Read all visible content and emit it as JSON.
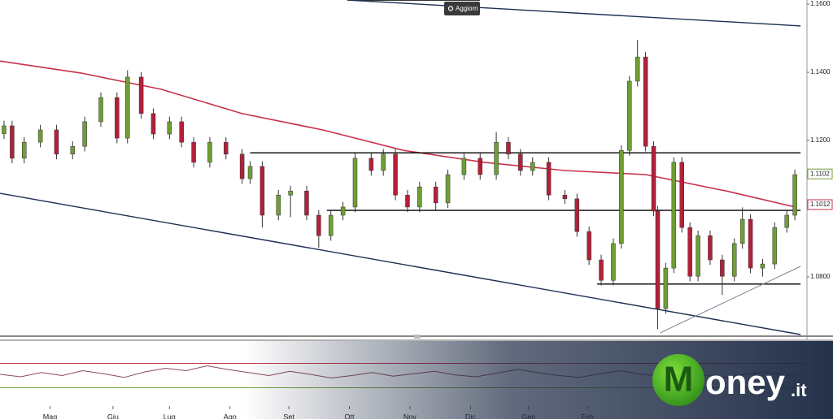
{
  "chart_data": {
    "type": "candlestick",
    "up_color": "#6f9e35",
    "down_color": "#b3203a",
    "xlim": [
      0,
      100
    ],
    "ylim": [
      1.0631,
      1.1612
    ],
    "yticks": [
      {
        "value": 1.08,
        "label": "1.0800"
      },
      {
        "value": 1.12,
        "label": "1.1200"
      },
      {
        "value": 1.14,
        "label": "1.1400"
      },
      {
        "value": 1.16,
        "label": "1.1600"
      }
    ],
    "xticks": [
      {
        "value": 6.2,
        "label": "Mag"
      },
      {
        "value": 14,
        "label": "Giu"
      },
      {
        "value": 21,
        "label": "Lug"
      },
      {
        "value": 28.5,
        "label": "Ago"
      },
      {
        "value": 35.8,
        "label": "Set"
      },
      {
        "value": 43.3,
        "label": "Ott"
      },
      {
        "value": 50.8,
        "label": "Nov"
      },
      {
        "value": 58.3,
        "label": "Dic"
      },
      {
        "value": 65.5,
        "label": "Gen"
      },
      {
        "value": 72.8,
        "label": "Feb"
      }
    ],
    "x": [
      0.5,
      1.5,
      3,
      5,
      7,
      9,
      10.5,
      12.5,
      14.5,
      15.8,
      17.5,
      19,
      21,
      22.5,
      24,
      26,
      28,
      30,
      31,
      32.5,
      34.5,
      36,
      38,
      39.5,
      41,
      42.5,
      44,
      46,
      47.5,
      49,
      50.5,
      52,
      54,
      55.5,
      57.5,
      59.5,
      61.5,
      63,
      64.5,
      66,
      68,
      70,
      71.5,
      73,
      74.5,
      76,
      77,
      78,
      79,
      80,
      81,
      81.5,
      82.5,
      83.5,
      84.5,
      85.5,
      86.5,
      88,
      89.5,
      91,
      92,
      93,
      94.5,
      96,
      97.5,
      98.5
    ],
    "open": [
      1.122,
      1.1243,
      1.1148,
      1.1195,
      1.1231,
      1.116,
      1.1183,
      1.1255,
      1.1326,
      1.1207,
      1.1386,
      1.1279,
      1.1219,
      1.1255,
      1.1195,
      1.1136,
      1.1195,
      1.116,
      1.1088,
      1.1124,
      1.0981,
      1.104,
      1.1052,
      1.0981,
      1.0921,
      1.0981,
      1.1005,
      1.1148,
      1.1112,
      1.116,
      1.104,
      1.1005,
      1.1064,
      1.1017,
      1.11,
      1.1148,
      1.11,
      1.1195,
      1.116,
      1.1112,
      1.1136,
      1.104,
      1.1029,
      1.0933,
      1.085,
      1.079,
      1.0898,
      1.1171,
      1.1374,
      1.1445,
      1.1183,
      1.0993,
      1.0707,
      1.0826,
      1.1136,
      1.0945,
      1.0802,
      1.0921,
      1.085,
      1.0802,
      1.0898,
      1.0969,
      1.0826,
      1.0838,
      1.0945,
      1.0981
    ],
    "high": [
      1.1258,
      1.1258,
      1.121,
      1.1246,
      1.1246,
      1.1198,
      1.127,
      1.1341,
      1.1341,
      1.1406,
      1.1401,
      1.1294,
      1.127,
      1.127,
      1.121,
      1.121,
      1.121,
      1.1175,
      1.1139,
      1.1139,
      1.1055,
      1.1067,
      1.1067,
      1.0996,
      1.0996,
      1.102,
      1.1163,
      1.1163,
      1.1175,
      1.1175,
      1.1055,
      1.1079,
      1.1079,
      1.1115,
      1.1163,
      1.1163,
      1.1225,
      1.121,
      1.1175,
      1.1151,
      1.1151,
      1.1055,
      1.1044,
      1.0948,
      1.0865,
      1.0913,
      1.1186,
      1.1389,
      1.1495,
      1.146,
      1.1198,
      1.1008,
      1.0841,
      1.1151,
      1.1151,
      1.096,
      1.0936,
      1.0936,
      1.0865,
      1.0913,
      1.1004,
      1.0984,
      1.0853,
      1.096,
      1.0996,
      1.1115
    ],
    "low": [
      1.1205,
      1.1133,
      1.1133,
      1.118,
      1.1145,
      1.1145,
      1.1168,
      1.124,
      1.1192,
      1.1192,
      1.1264,
      1.1204,
      1.1204,
      1.118,
      1.1121,
      1.1121,
      1.1145,
      1.1073,
      1.1073,
      1.0945,
      1.0966,
      1.0975,
      1.0966,
      1.0885,
      1.0906,
      1.0966,
      1.099,
      1.1097,
      1.1097,
      1.1025,
      1.099,
      1.099,
      1.0995,
      1.1002,
      1.1085,
      1.1085,
      1.1085,
      1.1145,
      1.1097,
      1.1097,
      1.1025,
      1.1014,
      1.0918,
      1.0835,
      1.0775,
      1.0775,
      1.0883,
      1.1156,
      1.1359,
      1.1168,
      1.0978,
      1.0647,
      1.0692,
      1.0811,
      1.093,
      1.0787,
      1.0787,
      1.0835,
      1.0747,
      1.0787,
      1.0883,
      1.0811,
      1.0801,
      1.0823,
      1.093,
      1.0966
    ],
    "close": [
      1.1243,
      1.1148,
      1.1195,
      1.1231,
      1.116,
      1.1183,
      1.1255,
      1.1326,
      1.1207,
      1.1386,
      1.1279,
      1.1219,
      1.1255,
      1.1195,
      1.1136,
      1.1195,
      1.116,
      1.1088,
      1.1124,
      1.0981,
      1.104,
      1.1052,
      1.0981,
      1.0921,
      1.0981,
      1.1005,
      1.1148,
      1.1112,
      1.116,
      1.104,
      1.1005,
      1.1064,
      1.1017,
      1.11,
      1.1148,
      1.11,
      1.1195,
      1.116,
      1.1112,
      1.1136,
      1.104,
      1.1029,
      1.0933,
      1.085,
      1.079,
      1.0898,
      1.1171,
      1.1374,
      1.1445,
      1.1183,
      1.0993,
      1.0707,
      1.0826,
      1.1136,
      1.0945,
      1.0802,
      1.0921,
      1.085,
      1.0802,
      1.0898,
      1.0969,
      1.0826,
      1.0838,
      1.0945,
      1.0981,
      1.11
    ],
    "moving_average": {
      "color": "#c8324a",
      "x": [
        0,
        10,
        20,
        30,
        40,
        50,
        60,
        70,
        80,
        90,
        98.5
      ],
      "values": [
        1.1433,
        1.1398,
        1.135,
        1.1279,
        1.1231,
        1.1171,
        1.1136,
        1.1112,
        1.11,
        1.1052,
        1.1005
      ]
    },
    "lines": [
      {
        "color": "#000000",
        "x": [
          31,
          99.2
        ],
        "values": [
          1.1164,
          1.1164
        ]
      },
      {
        "color": "#000000",
        "x": [
          40.5,
          99.2
        ],
        "values": [
          1.0995,
          1.0995
        ]
      },
      {
        "color": "#000000",
        "x": [
          74,
          99.2
        ],
        "values": [
          1.0779,
          1.0779
        ]
      },
      {
        "color": "#1d2f52",
        "x": [
          43,
          99.2
        ],
        "values": [
          1.1612,
          1.1536
        ]
      },
      {
        "color": "#1d2f52",
        "x": [
          0,
          99.2
        ],
        "values": [
          1.1045,
          1.0631
        ]
      },
      {
        "color": "#7a8290",
        "x": [
          81.8,
          99.2
        ],
        "values": [
          1.0636,
          1.0831
        ]
      }
    ],
    "price_labels": [
      {
        "value": 1.1102,
        "label": "1.1102",
        "color": "#6f9e35"
      },
      {
        "value": 1.1012,
        "label": "1.1012",
        "color": "#c8324a"
      }
    ],
    "oscillator": {
      "ylim": [
        0,
        100
      ],
      "levels": [
        {
          "value": 70,
          "color": "#c8324a"
        },
        {
          "value": 30,
          "color": "#6f9e35"
        }
      ],
      "values": [
        52,
        48,
        55,
        50,
        58,
        53,
        47,
        56,
        62,
        58,
        66,
        60,
        55,
        50,
        57,
        52,
        46,
        50,
        55,
        49,
        53,
        57,
        51,
        48,
        54,
        60,
        55,
        50,
        47,
        53,
        58,
        52,
        49,
        55,
        51,
        47,
        52,
        56,
        50,
        54
      ]
    }
  },
  "toolbar": {
    "button": "Aggiorn"
  },
  "logo": {
    "initial": "M",
    "text": "oney",
    "suffix": ".it"
  }
}
